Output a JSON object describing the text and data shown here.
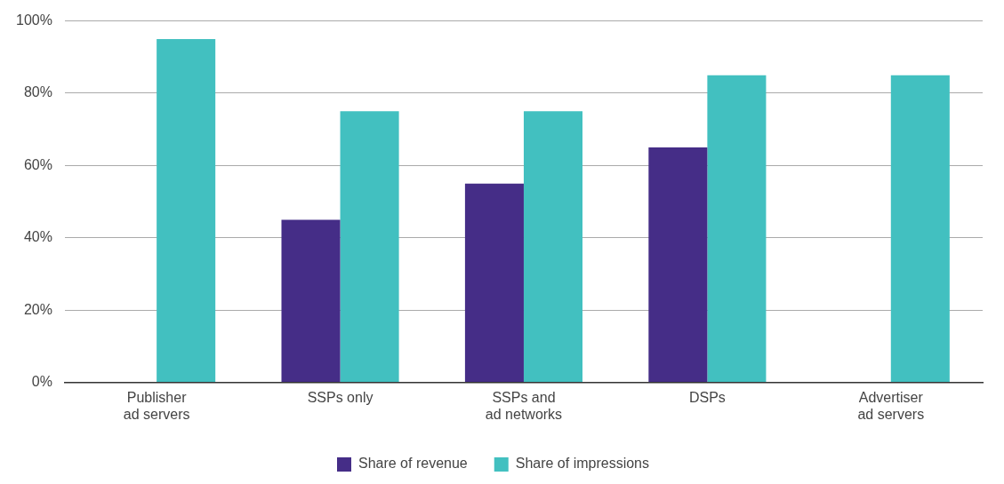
{
  "chart_data": {
    "type": "bar",
    "categories": [
      "Publisher\nad servers",
      "SSPs only",
      "SSPs and\nad networks",
      "DSPs",
      "Advertiser\nad servers"
    ],
    "series": [
      {
        "name": "Share of revenue",
        "color": "#452d87",
        "values": [
          null,
          45,
          55,
          65,
          null
        ]
      },
      {
        "name": "Share of impressions",
        "color": "#42c0c0",
        "values": [
          95,
          75,
          75,
          85,
          85
        ]
      }
    ],
    "ylim": [
      0,
      100
    ],
    "yticks": [
      {
        "value": 0,
        "label": "0%"
      },
      {
        "value": 20,
        "label": "20%"
      },
      {
        "value": 40,
        "label": "40%"
      },
      {
        "value": 60,
        "label": "60%"
      },
      {
        "value": 80,
        "label": "80%"
      },
      {
        "value": 100,
        "label": "100%"
      }
    ],
    "grid": "y",
    "legend": "bottom"
  }
}
